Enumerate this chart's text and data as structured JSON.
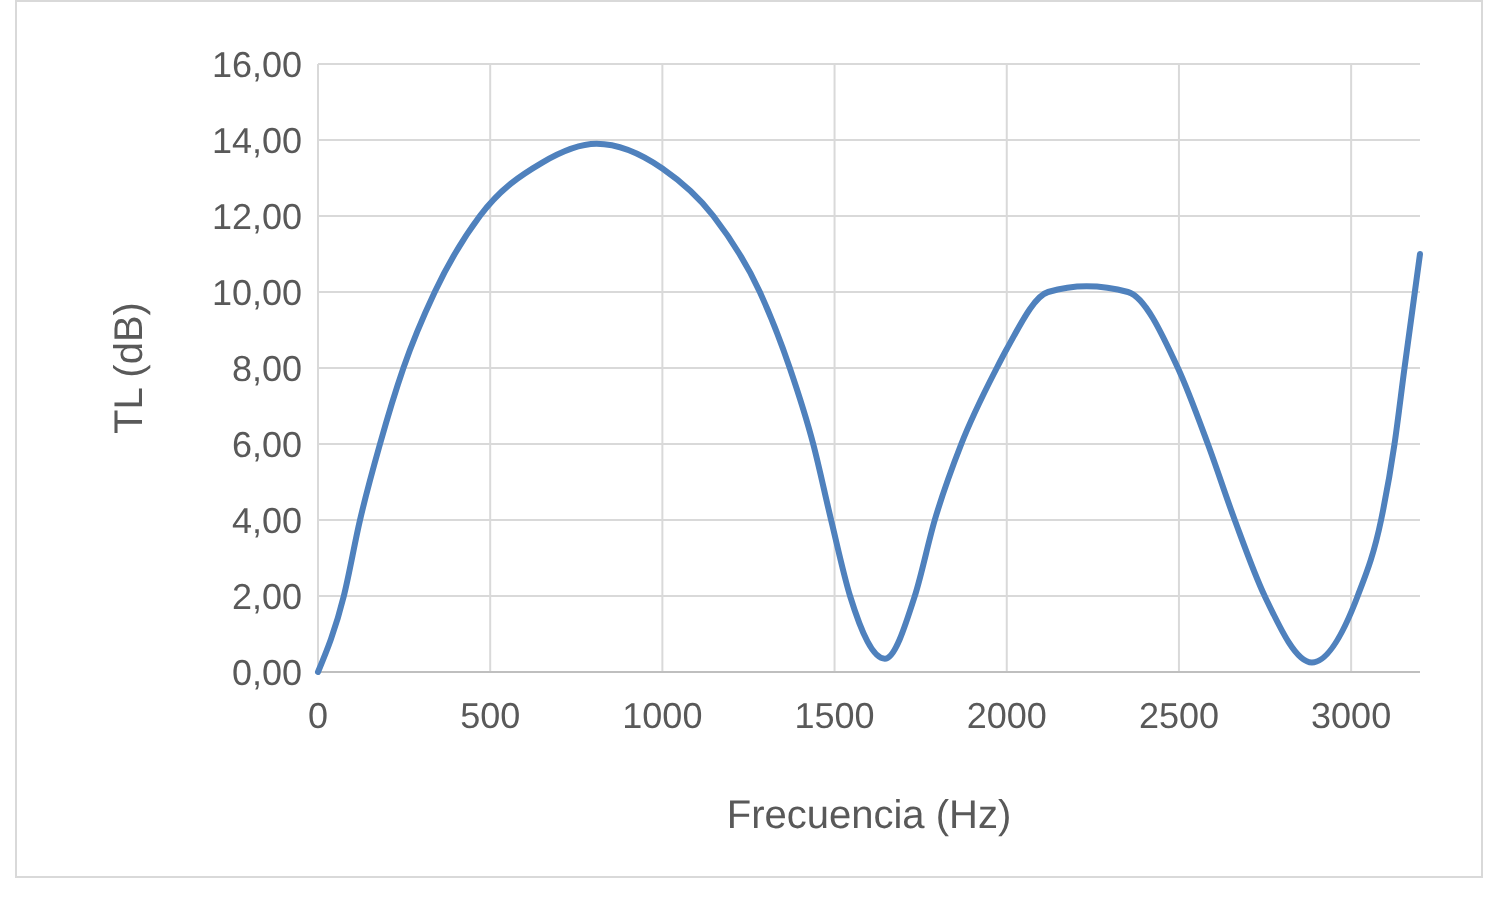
{
  "chart_data": {
    "type": "line",
    "xlabel": "Frecuencia (Hz)",
    "ylabel": "TL (dB)",
    "x": [
      0,
      75,
      122,
      180,
      248,
      339,
      470,
      650,
      809,
      1000,
      1148,
      1283,
      1370,
      1438,
      1490,
      1545,
      1646,
      1733,
      1791,
      1868,
      1971,
      2000,
      2120,
      2232,
      2352,
      2497,
      2584,
      2662,
      2749,
      2886,
      3019,
      3087,
      3126,
      3155,
      3200
    ],
    "series": [
      {
        "color": "#4f81bd",
        "values": [
          0,
          2,
          4,
          6,
          8,
          10,
          12,
          13.4,
          13.9,
          13.25,
          12,
          10,
          8,
          6,
          4,
          2,
          0.35,
          2,
          4,
          6,
          8,
          8.5,
          10,
          10.15,
          10,
          8,
          6,
          4,
          2,
          0.25,
          2,
          4,
          6,
          8,
          11
        ]
      }
    ],
    "xlim": [
      0,
      3200
    ],
    "xticks": [
      0,
      500,
      1000,
      1500,
      2000,
      2500,
      3000
    ],
    "ylim": [
      0,
      16
    ],
    "yticks": [
      {
        "value": 0,
        "label": "0,00"
      },
      {
        "value": 2,
        "label": "2,00"
      },
      {
        "value": 4,
        "label": "4,00"
      },
      {
        "value": 6,
        "label": "6,00"
      },
      {
        "value": 8,
        "label": "8,00"
      },
      {
        "value": 10,
        "label": "10,00"
      },
      {
        "value": 12,
        "label": "12,00"
      },
      {
        "value": 14,
        "label": "14,00"
      },
      {
        "value": 16,
        "label": "16,00"
      }
    ],
    "grid": true,
    "marker": "none",
    "line_style": "solid"
  }
}
